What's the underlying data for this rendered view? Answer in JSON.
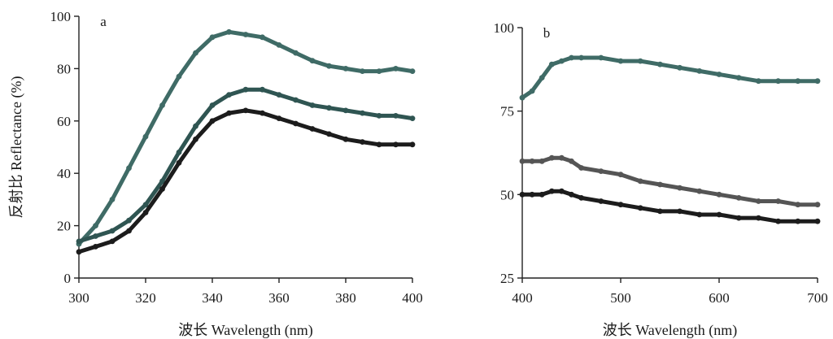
{
  "chart_data": [
    {
      "type": "line",
      "panel_label": "a",
      "xlabel": "波长 Wavelength (nm)",
      "ylabel": "反射比 Reflectance (%)",
      "xlim": [
        300,
        400
      ],
      "ylim": [
        0,
        100
      ],
      "xticks": [
        300,
        320,
        340,
        360,
        380,
        400
      ],
      "yticks": [
        0,
        20,
        40,
        60,
        80,
        100
      ],
      "xtick_labels": [
        "300",
        "320",
        "340",
        "360",
        "380",
        "400"
      ],
      "ytick_labels": [
        "0",
        "20",
        "40",
        "60",
        "80",
        "100"
      ],
      "grid": false,
      "legend": "none",
      "x": [
        300,
        305,
        310,
        315,
        320,
        325,
        330,
        335,
        340,
        345,
        350,
        355,
        360,
        365,
        370,
        375,
        380,
        385,
        390,
        395,
        400
      ],
      "series": [
        {
          "color": "#3f6b66",
          "values": [
            13,
            20,
            30,
            42,
            54,
            66,
            77,
            86,
            92,
            94,
            93,
            92,
            89,
            86,
            83,
            81,
            80,
            79,
            79,
            80,
            79
          ]
        },
        {
          "color": "#2f5552",
          "values": [
            14,
            16,
            18,
            22,
            28,
            37,
            48,
            58,
            66,
            70,
            72,
            72,
            70,
            68,
            66,
            65,
            64,
            63,
            62,
            62,
            61
          ]
        },
        {
          "color": "#1c1c1c",
          "values": [
            10,
            12,
            14,
            18,
            25,
            34,
            44,
            53,
            60,
            63,
            64,
            63,
            61,
            59,
            57,
            55,
            53,
            52,
            51,
            51,
            51
          ]
        }
      ]
    },
    {
      "type": "line",
      "panel_label": "b",
      "xlabel": "波长 Wavelength (nm)",
      "ylabel": "",
      "xlim": [
        400,
        700
      ],
      "ylim": [
        25,
        100
      ],
      "xticks": [
        400,
        500,
        600,
        700
      ],
      "yticks": [
        25,
        50,
        75,
        100
      ],
      "xtick_labels": [
        "400",
        "500",
        "600",
        "700"
      ],
      "ytick_labels": [
        "25",
        "50",
        "75",
        "100"
      ],
      "grid": false,
      "legend": "none",
      "x": [
        400,
        410,
        420,
        430,
        440,
        450,
        460,
        480,
        500,
        520,
        540,
        560,
        580,
        600,
        620,
        640,
        660,
        680,
        700
      ],
      "series": [
        {
          "color": "#3f6b66",
          "values": [
            79,
            81,
            85,
            89,
            90,
            91,
            91,
            91,
            90,
            90,
            89,
            88,
            87,
            86,
            85,
            84,
            84,
            84,
            84
          ]
        },
        {
          "color": "#555555",
          "values": [
            60,
            60,
            60,
            61,
            61,
            60,
            58,
            57,
            56,
            54,
            53,
            52,
            51,
            50,
            49,
            48,
            48,
            47,
            47
          ]
        },
        {
          "color": "#1c1c1c",
          "values": [
            50,
            50,
            50,
            51,
            51,
            50,
            49,
            48,
            47,
            46,
            45,
            45,
            44,
            44,
            43,
            43,
            42,
            42,
            42
          ]
        }
      ]
    }
  ]
}
